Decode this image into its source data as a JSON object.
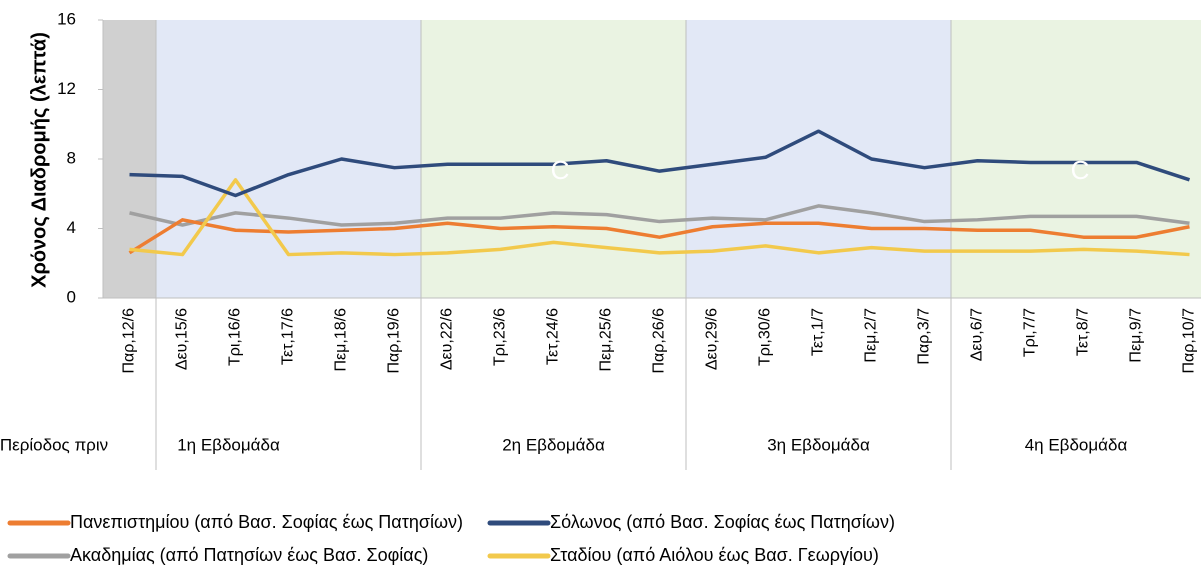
{
  "chart_data": {
    "type": "line",
    "y_axis_label": "Χρόνος Διαδρομής (λεπτά)",
    "categories": [
      "Παρ,12/6",
      "Δευ,15/6",
      "Τρι,16/6",
      "Τετ,17/6",
      "Πεμ,18/6",
      "Παρ,19/6",
      "Δευ,22/6",
      "Τρι,23/6",
      "Τετ,24/6",
      "Πεμ,25/6",
      "Παρ,26/6",
      "Δευ,29/6",
      "Τρι,30/6",
      "Τετ,1/7",
      "Πεμ,2/7",
      "Παρ,3/7",
      "Δευ,6/7",
      "Τρι,7/7",
      "Τετ,8/7",
      "Πεμ,9/7",
      "Παρ,10/7"
    ],
    "periods": [
      {
        "label": "Περίοδος πριν",
        "count": 1,
        "color": "#d0d0d0"
      },
      {
        "label": "1η Εβδομάδα",
        "count": 5,
        "color": "#e2e8f6"
      },
      {
        "label": "2η Εβδομάδα",
        "count": 5,
        "color": "#eaf3e2"
      },
      {
        "label": "3η Εβδομάδα",
        "count": 5,
        "color": "#e2e8f6"
      },
      {
        "label": "4η Εβδομάδα",
        "count": 5,
        "color": "#eaf3e2"
      }
    ],
    "annotations": [
      "C",
      "C"
    ],
    "series": [
      {
        "name": "Πανεπιστημίου (από Βασ. Σοφίας έως Πατησίων)",
        "color": "#ed7d31",
        "values": [
          2.6,
          4.5,
          3.9,
          3.8,
          3.9,
          4.0,
          4.3,
          4.0,
          4.1,
          4.0,
          3.5,
          4.1,
          4.3,
          4.3,
          4.0,
          4.0,
          3.9,
          3.9,
          3.5,
          3.5,
          4.1
        ]
      },
      {
        "name": "Σόλωνος (από  Βασ. Σοφίας έως Πατησίων)",
        "color": "#2f4b7c",
        "values": [
          7.1,
          7.0,
          5.9,
          7.1,
          8.0,
          7.5,
          7.7,
          7.7,
          7.7,
          7.9,
          7.3,
          7.7,
          8.1,
          9.6,
          8.0,
          7.5,
          7.9,
          7.8,
          7.8,
          7.8,
          6.8
        ]
      },
      {
        "name": "Ακαδημίας (από  Πατησίων έως Βασ. Σοφίας)",
        "color": "#a0a0a0",
        "values": [
          4.9,
          4.2,
          4.9,
          4.6,
          4.2,
          4.3,
          4.6,
          4.6,
          4.9,
          4.8,
          4.4,
          4.6,
          4.5,
          5.3,
          4.9,
          4.4,
          4.5,
          4.7,
          4.7,
          4.7,
          4.3
        ]
      },
      {
        "name": "Σταδίου (από Αιόλου έως Βασ. Γεωργίου)",
        "color": "#f2c94c",
        "values": [
          2.8,
          2.5,
          6.8,
          2.5,
          2.6,
          2.5,
          2.6,
          2.8,
          3.2,
          2.9,
          2.6,
          2.7,
          3.0,
          2.6,
          2.9,
          2.7,
          2.7,
          2.7,
          2.8,
          2.7,
          2.5
        ]
      }
    ],
    "ylim": [
      0,
      16
    ],
    "yticks": [
      0,
      4,
      8,
      12,
      16
    ]
  }
}
